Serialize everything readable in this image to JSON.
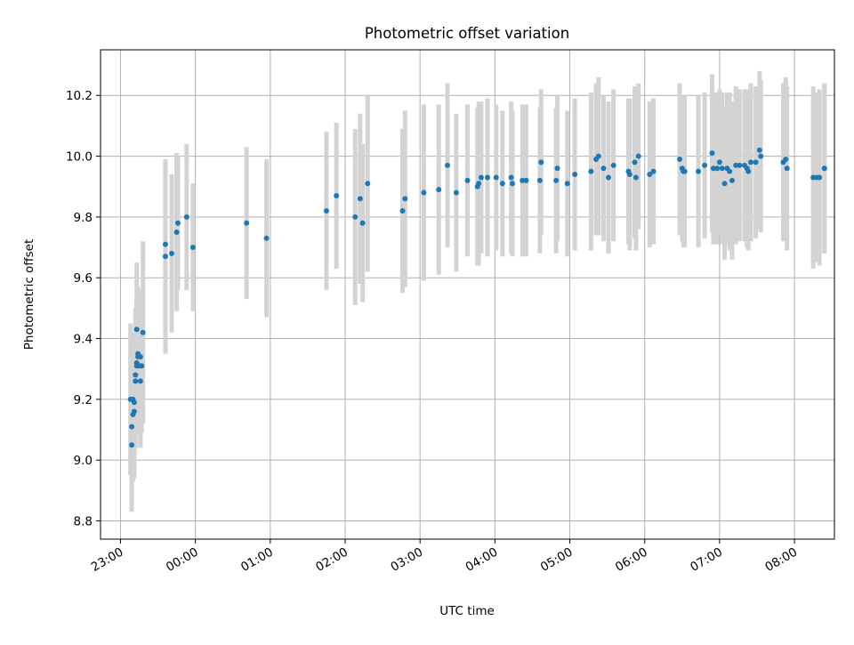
{
  "chart_data": {
    "type": "scatter",
    "title": "Photometric offset variation",
    "xlabel": "UTC time",
    "ylabel": "Photometric offset",
    "x_unit": "minutes from 23:00 UTC",
    "xlim": [
      -16,
      572
    ],
    "ylim": [
      8.74,
      10.35
    ],
    "xticks": [
      {
        "value": 0,
        "label": "23:00"
      },
      {
        "value": 60,
        "label": "00:00"
      },
      {
        "value": 120,
        "label": "01:00"
      },
      {
        "value": 180,
        "label": "02:00"
      },
      {
        "value": 240,
        "label": "03:00"
      },
      {
        "value": 300,
        "label": "04:00"
      },
      {
        "value": 360,
        "label": "05:00"
      },
      {
        "value": 420,
        "label": "06:00"
      },
      {
        "value": 480,
        "label": "07:00"
      },
      {
        "value": 540,
        "label": "08:00"
      }
    ],
    "yticks": [
      {
        "value": 8.8,
        "label": "8.8"
      },
      {
        "value": 9.0,
        "label": "9.0"
      },
      {
        "value": 9.2,
        "label": "9.2"
      },
      {
        "value": 9.4,
        "label": "9.4"
      },
      {
        "value": 9.6,
        "label": "9.6"
      },
      {
        "value": 9.8,
        "label": "9.8"
      },
      {
        "value": 10.0,
        "label": "10.0"
      },
      {
        "value": 10.2,
        "label": "10.2"
      }
    ],
    "grid": true,
    "colors": {
      "points": "#1f77b4",
      "errorbars": "#d3d3d3",
      "grid": "#b0b0b0"
    },
    "points": [
      [
        8,
        9.2,
        0.25
      ],
      [
        9,
        9.05,
        0.22
      ],
      [
        9,
        9.11,
        0.22
      ],
      [
        10,
        9.15,
        0.22
      ],
      [
        11,
        9.19,
        0.22
      ],
      [
        10,
        9.2,
        0.22
      ],
      [
        11,
        9.16,
        0.22
      ],
      [
        12,
        9.26,
        0.22
      ],
      [
        12,
        9.28,
        0.22
      ],
      [
        13,
        9.31,
        0.22
      ],
      [
        13,
        9.32,
        0.22
      ],
      [
        13,
        9.43,
        0.22
      ],
      [
        14,
        9.35,
        0.22
      ],
      [
        14,
        9.34,
        0.22
      ],
      [
        15,
        9.31,
        0.22
      ],
      [
        16,
        9.26,
        0.22
      ],
      [
        16,
        9.34,
        0.22
      ],
      [
        17,
        9.31,
        0.22
      ],
      [
        18,
        9.42,
        0.3
      ],
      [
        36,
        9.67,
        0.32
      ],
      [
        36,
        9.71,
        0.28
      ],
      [
        41,
        9.68,
        0.26
      ],
      [
        45,
        9.75,
        0.26
      ],
      [
        46,
        9.78,
        0.22
      ],
      [
        53,
        9.8,
        0.24
      ],
      [
        58,
        9.7,
        0.21
      ],
      [
        101,
        9.78,
        0.25
      ],
      [
        117,
        9.73,
        0.26
      ],
      [
        165,
        9.82,
        0.26
      ],
      [
        173,
        9.87,
        0.24
      ],
      [
        188,
        9.8,
        0.29
      ],
      [
        192,
        9.86,
        0.28
      ],
      [
        194,
        9.78,
        0.26
      ],
      [
        198,
        9.91,
        0.29
      ],
      [
        226,
        9.82,
        0.27
      ],
      [
        228,
        9.86,
        0.29
      ],
      [
        243,
        9.88,
        0.29
      ],
      [
        255,
        9.89,
        0.28
      ],
      [
        262,
        9.97,
        0.27
      ],
      [
        269,
        9.88,
        0.26
      ],
      [
        278,
        9.92,
        0.25
      ],
      [
        286,
        9.9,
        0.26
      ],
      [
        287,
        9.91,
        0.27
      ],
      [
        289,
        9.93,
        0.25
      ],
      [
        294,
        9.93,
        0.26
      ],
      [
        301,
        9.93,
        0.24
      ],
      [
        306,
        9.91,
        0.24
      ],
      [
        313,
        9.93,
        0.25
      ],
      [
        314,
        9.91,
        0.24
      ],
      [
        322,
        9.92,
        0.25
      ],
      [
        325,
        9.92,
        0.25
      ],
      [
        336,
        9.92,
        0.24
      ],
      [
        337,
        9.98,
        0.24
      ],
      [
        349,
        9.92,
        0.24
      ],
      [
        350,
        9.96,
        0.24
      ],
      [
        358,
        9.91,
        0.24
      ],
      [
        364,
        9.94,
        0.25
      ],
      [
        377,
        9.95,
        0.26
      ],
      [
        381,
        9.99,
        0.25
      ],
      [
        383,
        10.0,
        0.26
      ],
      [
        387,
        9.96,
        0.24
      ],
      [
        391,
        9.93,
        0.25
      ],
      [
        395,
        9.97,
        0.25
      ],
      [
        407,
        9.95,
        0.24
      ],
      [
        408,
        9.94,
        0.25
      ],
      [
        412,
        9.98,
        0.25
      ],
      [
        413,
        9.93,
        0.24
      ],
      [
        415,
        10.0,
        0.24
      ],
      [
        424,
        9.94,
        0.24
      ],
      [
        427,
        9.95,
        0.24
      ],
      [
        448,
        9.99,
        0.25
      ],
      [
        450,
        9.96,
        0.24
      ],
      [
        451,
        9.95,
        0.25
      ],
      [
        452,
        9.95,
        0.25
      ],
      [
        463,
        9.95,
        0.25
      ],
      [
        468,
        9.97,
        0.24
      ],
      [
        474,
        10.01,
        0.26
      ],
      [
        475,
        9.96,
        0.25
      ],
      [
        478,
        9.96,
        0.25
      ],
      [
        480,
        9.98,
        0.24
      ],
      [
        482,
        9.96,
        0.25
      ],
      [
        484,
        9.91,
        0.25
      ],
      [
        486,
        9.96,
        0.25
      ],
      [
        488,
        9.95,
        0.26
      ],
      [
        490,
        9.92,
        0.26
      ],
      [
        493,
        9.97,
        0.26
      ],
      [
        496,
        9.97,
        0.25
      ],
      [
        500,
        9.97,
        0.25
      ],
      [
        502,
        9.96,
        0.26
      ],
      [
        503,
        9.95,
        0.26
      ],
      [
        505,
        9.98,
        0.26
      ],
      [
        509,
        9.98,
        0.25
      ],
      [
        512,
        10.02,
        0.26
      ],
      [
        513,
        10.0,
        0.25
      ],
      [
        531,
        9.98,
        0.26
      ],
      [
        533,
        9.99,
        0.27
      ],
      [
        534,
        9.96,
        0.27
      ],
      [
        555,
        9.93,
        0.3
      ],
      [
        558,
        9.93,
        0.28
      ],
      [
        560,
        9.93,
        0.29
      ],
      [
        564,
        9.96,
        0.28
      ],
      [
        564,
        9.96,
        0.28
      ]
    ]
  }
}
